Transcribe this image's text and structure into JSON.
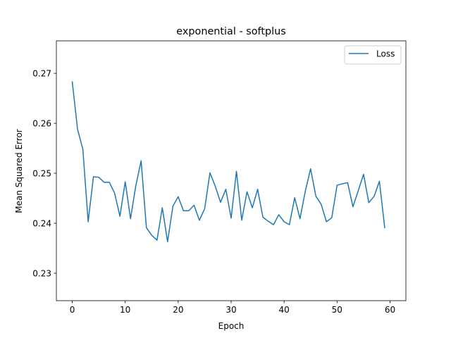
{
  "chart_data": {
    "type": "line",
    "title": "exponential - softplus",
    "xlabel": "Epoch",
    "ylabel": "Mean Squared Error",
    "xlim": [
      -3,
      63
    ],
    "ylim": [
      0.2245,
      0.2765
    ],
    "xticks": [
      0,
      10,
      20,
      30,
      40,
      50,
      60
    ],
    "yticks": [
      0.23,
      0.24,
      0.25,
      0.26,
      0.27
    ],
    "ytick_labels": [
      "0.23",
      "0.24",
      "0.25",
      "0.26",
      "0.27"
    ],
    "grid": false,
    "legend": {
      "position": "top-right",
      "entries": [
        "Loss"
      ]
    },
    "colors": {
      "series": "#1f77b4",
      "axes": "#000000"
    },
    "series": [
      {
        "name": "Loss",
        "x": [
          0,
          1,
          2,
          3,
          4,
          5,
          6,
          7,
          8,
          9,
          10,
          11,
          12,
          13,
          14,
          15,
          16,
          17,
          18,
          19,
          20,
          21,
          22,
          23,
          24,
          25,
          26,
          27,
          28,
          29,
          30,
          31,
          32,
          33,
          34,
          35,
          36,
          37,
          38,
          39,
          40,
          41,
          42,
          43,
          44,
          45,
          46,
          47,
          48,
          49,
          50,
          51,
          52,
          53,
          54,
          55,
          56,
          57,
          58,
          59
        ],
        "values": [
          0.2683,
          0.2588,
          0.2548,
          0.2403,
          0.2493,
          0.2492,
          0.2482,
          0.2482,
          0.246,
          0.2414,
          0.2483,
          0.2409,
          0.2475,
          0.2525,
          0.2391,
          0.2376,
          0.2366,
          0.2431,
          0.2363,
          0.2434,
          0.2453,
          0.2425,
          0.2425,
          0.2436,
          0.2406,
          0.2429,
          0.2501,
          0.2474,
          0.2442,
          0.2468,
          0.241,
          0.2504,
          0.2406,
          0.2463,
          0.2431,
          0.2468,
          0.2412,
          0.2404,
          0.2397,
          0.2417,
          0.2403,
          0.2397,
          0.2451,
          0.2409,
          0.2464,
          0.2509,
          0.2454,
          0.2438,
          0.2403,
          0.2411,
          0.2476,
          0.2479,
          0.2481,
          0.2433,
          0.2465,
          0.2498,
          0.2441,
          0.2454,
          0.2484,
          0.2391
        ]
      }
    ]
  }
}
